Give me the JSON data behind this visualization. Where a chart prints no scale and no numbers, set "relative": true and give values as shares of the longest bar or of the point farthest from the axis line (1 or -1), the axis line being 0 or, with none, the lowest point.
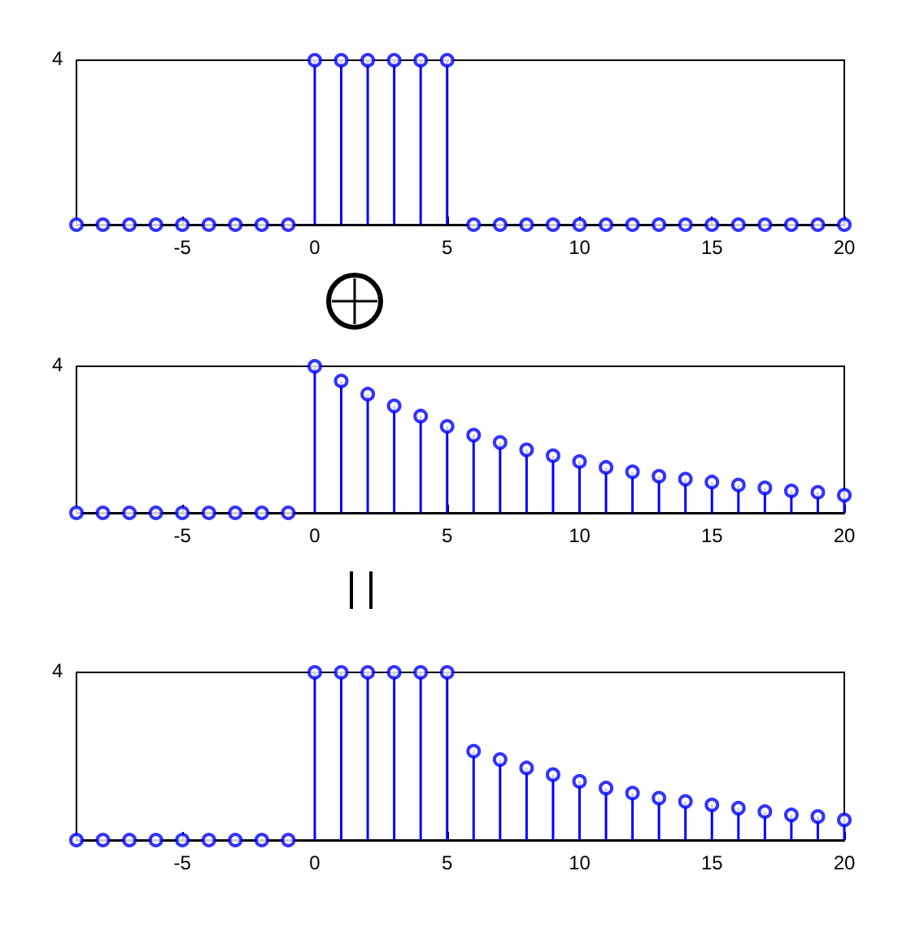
{
  "chart_data": [
    {
      "type": "lollipop",
      "relative": true,
      "x": [
        -9,
        -8,
        -7,
        -6,
        -5,
        -4,
        -3,
        -2,
        -1,
        0,
        1,
        2,
        3,
        4,
        5,
        6,
        7,
        8,
        9,
        10,
        11,
        12,
        13,
        14,
        15,
        16,
        17,
        18,
        19,
        20
      ],
      "color": "#0000ff",
      "marker": "circle",
      "values": [
        0,
        0,
        0,
        0,
        0,
        0,
        0,
        0,
        0,
        1,
        1,
        1,
        1,
        1,
        1,
        0,
        0,
        0,
        0,
        0,
        0,
        0,
        0,
        0,
        0,
        0,
        0,
        0,
        0,
        0
      ],
      "xlim": [
        -9,
        20
      ],
      "xticks": [
        -5,
        0,
        5,
        10,
        15,
        20
      ],
      "annotations": [
        "4"
      ]
    },
    {
      "type": "lollipop",
      "relative": true,
      "x": [
        -9,
        -8,
        -7,
        -6,
        -5,
        -4,
        -3,
        -2,
        -1,
        0,
        1,
        2,
        3,
        4,
        5,
        6,
        7,
        8,
        9,
        10,
        11,
        12,
        13,
        14,
        15,
        16,
        17,
        18,
        19,
        20
      ],
      "color": "#0000ff",
      "marker": "circle",
      "values": [
        0,
        0,
        0,
        0,
        0,
        0,
        0,
        0,
        0,
        1,
        0.9,
        0.81,
        0.73,
        0.66,
        0.59,
        0.53,
        0.48,
        0.43,
        0.39,
        0.35,
        0.31,
        0.28,
        0.25,
        0.23,
        0.21,
        0.19,
        0.17,
        0.15,
        0.14,
        0.12
      ],
      "xlim": [
        -9,
        20
      ],
      "xticks": [
        -5,
        0,
        5,
        10,
        15,
        20
      ],
      "annotations": [
        "4"
      ]
    },
    {
      "type": "lollipop",
      "relative": true,
      "x": [
        -9,
        -8,
        -7,
        -6,
        -5,
        -4,
        -3,
        -2,
        -1,
        0,
        1,
        2,
        3,
        4,
        5,
        6,
        7,
        8,
        9,
        10,
        11,
        12,
        13,
        14,
        15,
        16,
        17,
        18,
        19,
        20
      ],
      "color": "#0000ff",
      "marker": "circle",
      "values": [
        0,
        0,
        0,
        0,
        0,
        0,
        0,
        0,
        0,
        1,
        1,
        1,
        1,
        1,
        1,
        0.53,
        0.48,
        0.43,
        0.39,
        0.35,
        0.31,
        0.28,
        0.25,
        0.23,
        0.21,
        0.19,
        0.17,
        0.15,
        0.14,
        0.12
      ],
      "xlim": [
        -9,
        20
      ],
      "xticks": [
        -5,
        0,
        5,
        10,
        15,
        20
      ],
      "annotations": [
        "4"
      ]
    }
  ]
}
